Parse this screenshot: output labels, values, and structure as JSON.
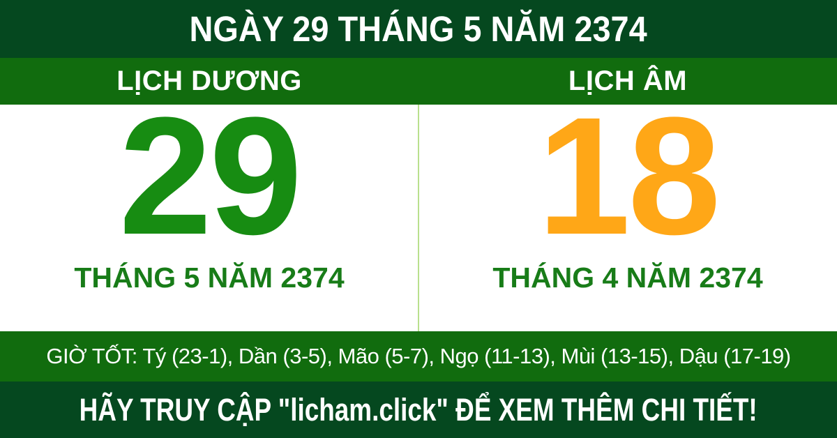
{
  "banner": {
    "title": "NGÀY 29 THÁNG 5 NĂM 2374"
  },
  "calendar": {
    "solar": {
      "header": "LỊCH DƯƠNG",
      "day": "29",
      "month_year": "THÁNG 5 NĂM 2374"
    },
    "lunar": {
      "header": "LỊCH ÂM",
      "day": "18",
      "month_year": "THÁNG 4 NĂM 2374"
    }
  },
  "good_hours": {
    "text": "GIỜ TỐT: Tý (23-1), Dần (3-5), Mão (5-7), Ngọ (11-13), Mùi (13-15), Dậu (17-19)"
  },
  "footer": {
    "text": "HÃY TRUY CẬP \"licham.click\" ĐỂ XEM THÊM CHI TIẾT!"
  },
  "colors": {
    "dark-green": "#05481f",
    "green": "#116c0e",
    "day-solar": "#178c12",
    "day-lunar": "#ffa717",
    "month-green": "#187c18",
    "divider": "#b9e08d"
  }
}
